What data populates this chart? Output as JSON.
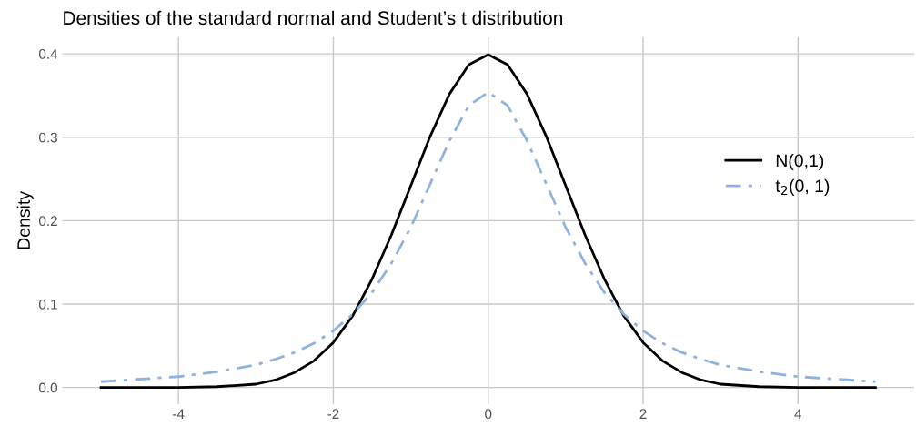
{
  "chart_data": {
    "type": "line",
    "title": "Densities of the standard normal and Student’s t distribution",
    "ylabel": "Density",
    "x": [
      -5,
      -4.5,
      -4,
      -3.5,
      -3,
      -2.75,
      -2.5,
      -2.25,
      -2,
      -1.75,
      -1.5,
      -1.25,
      -1,
      -0.75,
      -0.5,
      -0.25,
      0,
      0.25,
      0.5,
      0.75,
      1,
      1.25,
      1.5,
      1.75,
      2,
      2.25,
      2.5,
      2.75,
      3,
      3.5,
      4,
      4.5,
      5
    ],
    "series": [
      {
        "name": "N(0,1)",
        "color": "#000000",
        "line_style": "solid",
        "values": [
          0,
          0,
          0,
          0.001,
          0.004,
          0.009,
          0.018,
          0.032,
          0.054,
          0.086,
          0.13,
          0.183,
          0.242,
          0.301,
          0.352,
          0.387,
          0.399,
          0.387,
          0.352,
          0.301,
          0.242,
          0.183,
          0.13,
          0.086,
          0.054,
          0.032,
          0.018,
          0.009,
          0.004,
          0.001,
          0,
          0,
          0
        ]
      },
      {
        "name": "t$_{2}$(0, 1)",
        "color": "#8fb3de",
        "line_style": "dashdot",
        "values": [
          0.007,
          0.01,
          0.013,
          0.019,
          0.027,
          0.034,
          0.042,
          0.053,
          0.068,
          0.088,
          0.114,
          0.149,
          0.192,
          0.244,
          0.296,
          0.338,
          0.354,
          0.338,
          0.296,
          0.244,
          0.192,
          0.149,
          0.114,
          0.088,
          0.068,
          0.053,
          0.042,
          0.034,
          0.027,
          0.019,
          0.013,
          0.01,
          0.007
        ]
      }
    ],
    "xlim": [
      -5.5,
      5.5
    ],
    "xticks": [
      -4,
      -2,
      0,
      2,
      4
    ],
    "ylim": [
      -0.02,
      0.42
    ],
    "yticks": [
      {
        "value": 0,
        "label": "0.0"
      },
      0.1,
      0.2,
      0.3,
      0.4
    ],
    "grid": true,
    "legend": "center right",
    "marker": "none"
  }
}
